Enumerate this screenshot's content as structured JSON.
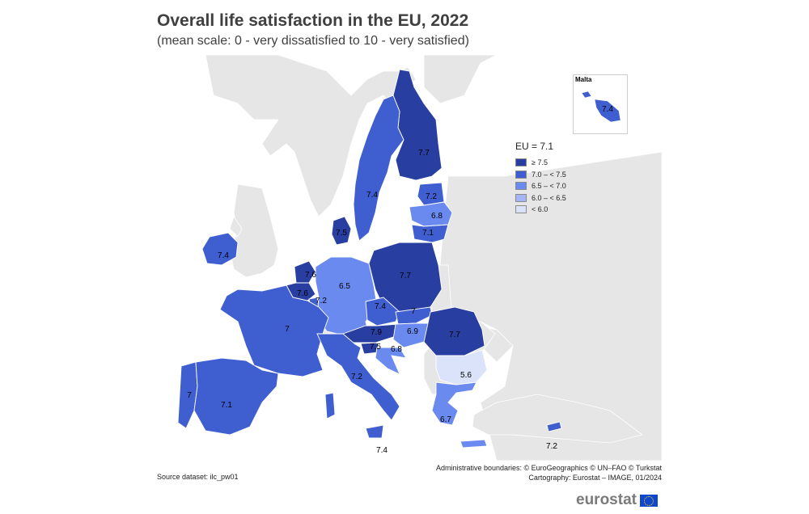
{
  "title": "Overall life satisfaction in the EU, 2022",
  "subtitle": "(mean scale: 0 - very dissatisfied to 10 - very satisfied)",
  "legend": {
    "title": "EU = 7.1",
    "classes": [
      {
        "label": "≥ 7.5",
        "color": "#283ea1"
      },
      {
        "label": "7.0 – < 7.5",
        "color": "#3f5fd0"
      },
      {
        "label": "6.5 – < 7.0",
        "color": "#6b8af0"
      },
      {
        "label": "6.0 – < 6.5",
        "color": "#a4b6f5"
      },
      {
        "label": "< 6.0",
        "color": "#dbe3fb"
      }
    ]
  },
  "inset": {
    "title": "Malta",
    "value": "7.4"
  },
  "colors": {
    "sea": "#ffffff",
    "non_eu_land": "#e6e6e6",
    "border": "#ffffff",
    "outline": "#505050"
  },
  "country_values": {
    "finland": "7.7",
    "sweden": "7.4",
    "estonia": "7.2",
    "latvia": "6.8",
    "lithuania": "7.1",
    "denmark": "7.5",
    "ireland": "7.4",
    "netherlands": "7.6",
    "belgium": "7.6",
    "luxembourg": "7.2",
    "germany": "6.5",
    "poland": "7.7",
    "czechia": "7.4",
    "slovakia": "7",
    "austria": "7.9",
    "hungary": "6.9",
    "slovenia": "7.5",
    "croatia": "6.8",
    "romania": "7.7",
    "bulgaria": "5.6",
    "france": "7",
    "italy": "7.2",
    "portugal": "7",
    "spain": "7.1",
    "greece": "6.7",
    "cyprus": "7.2",
    "italy_south": "7.4"
  },
  "footer": {
    "source": "Source dataset: ilc_pw01",
    "credits_line1": "Administrative boundaries: © EuroGeographics © UN–FAO © Turkstat",
    "credits_line2": "Cartography: Eurostat – IMAGE, 01/2024",
    "brand": "eurostat"
  }
}
